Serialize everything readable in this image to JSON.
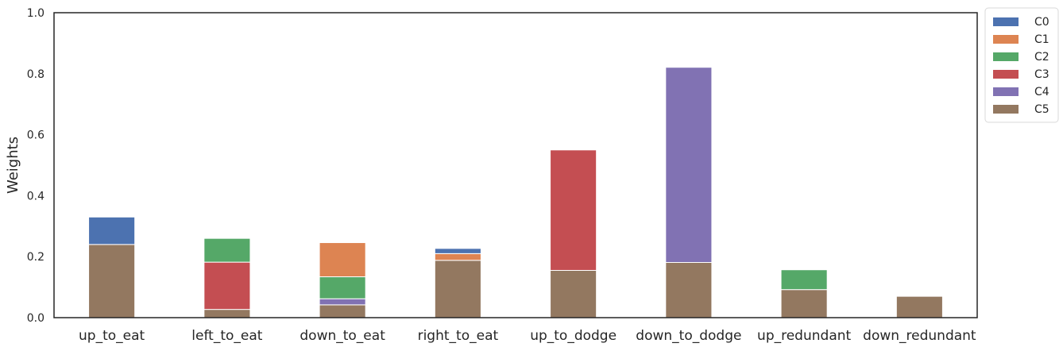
{
  "chart_data": {
    "type": "bar",
    "stacked": true,
    "title": "",
    "xlabel": "",
    "ylabel": "Weights",
    "ylim": [
      0,
      1
    ],
    "yticks": [
      "0.0",
      "0.2",
      "0.4",
      "0.6",
      "0.8",
      "1.0"
    ],
    "grid": false,
    "legend_position": "outside-top-right",
    "categories": [
      "up_to_eat",
      "left_to_eat",
      "down_to_eat",
      "right_to_eat",
      "up_to_dodge",
      "down_to_dodge",
      "up_redundant",
      "down_redundant"
    ],
    "stack_order": [
      "C5",
      "C4",
      "C3",
      "C2",
      "C1",
      "C0"
    ],
    "series": [
      {
        "name": "C0",
        "color": "#4c72b0",
        "values": [
          0.09,
          0,
          0,
          0.017,
          0,
          0,
          0,
          0
        ]
      },
      {
        "name": "C1",
        "color": "#dd8452",
        "values": [
          0,
          0,
          0.112,
          0.022,
          0,
          0,
          0,
          0
        ]
      },
      {
        "name": "C2",
        "color": "#55a868",
        "values": [
          0,
          0.078,
          0.072,
          0,
          0,
          0,
          0.065,
          0
        ]
      },
      {
        "name": "C3",
        "color": "#c44e52",
        "values": [
          0,
          0.155,
          0,
          0,
          0.395,
          0,
          0,
          0
        ]
      },
      {
        "name": "C4",
        "color": "#8172b3",
        "values": [
          0,
          0,
          0.02,
          0,
          0,
          0.64,
          0,
          0
        ]
      },
      {
        "name": "C5",
        "color": "#937860",
        "values": [
          0.24,
          0.027,
          0.042,
          0.188,
          0.155,
          0.181,
          0.092,
          0.07
        ]
      }
    ]
  }
}
